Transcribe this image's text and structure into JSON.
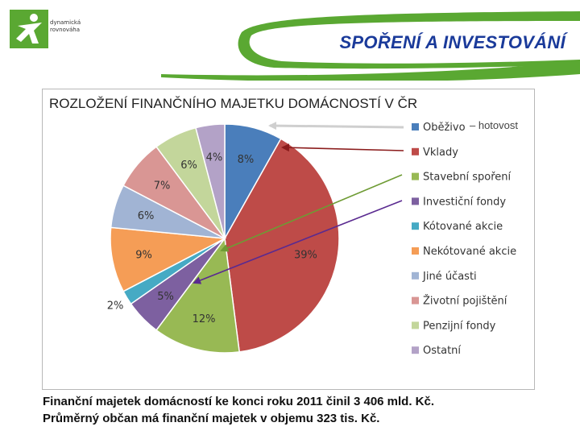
{
  "header": {
    "logo_text_line1": "dynamická",
    "logo_text_line2": "rovnováha",
    "slide_title": "SPOŘENÍ A INVESTOVÁNÍ",
    "colors": {
      "accent_green": "#5aa832",
      "title_blue": "#1a3a9a"
    }
  },
  "chart_data": {
    "type": "pie",
    "title": "ROZLOŽENÍ FINANČNÍHO MAJETKU DOMÁCNOSTÍ V ČR",
    "annotation": "hotovost",
    "legend_position": "right",
    "series": [
      {
        "name": "Oběživo",
        "value": 8,
        "label": "8%",
        "color": "#4a7ebb"
      },
      {
        "name": "Vklady",
        "value": 39,
        "label": "39%",
        "color": "#be4b48"
      },
      {
        "name": "Stavební spoření",
        "value": 12,
        "label": "12%",
        "color": "#98b954"
      },
      {
        "name": "Investiční fondy",
        "value": 5,
        "label": "5%",
        "color": "#7d60a0"
      },
      {
        "name": "Kótované akcie",
        "value": 2,
        "label": "2%",
        "color": "#46aac4"
      },
      {
        "name": "Nekótované akcie",
        "value": 9,
        "label": "9%",
        "color": "#f59d56"
      },
      {
        "name": "Jiné účasti",
        "value": 6,
        "label": "6%",
        "color": "#a1b4d4"
      },
      {
        "name": "Životní pojištění",
        "value": 7,
        "label": "7%",
        "color": "#d99694"
      },
      {
        "name": "Penzijní fondy",
        "value": 6,
        "label": "6%",
        "color": "#c3d69b"
      },
      {
        "name": "Ostatní",
        "value": 4,
        "label": "4%",
        "color": "#b3a2c7"
      }
    ]
  },
  "caption": {
    "line1": "Finanční majetek domácností ke konci roku 2011 činil 3 406 mld. Kč.",
    "line2": "Průměrný občan má finanční majetek v objemu 323 tis. Kč."
  }
}
